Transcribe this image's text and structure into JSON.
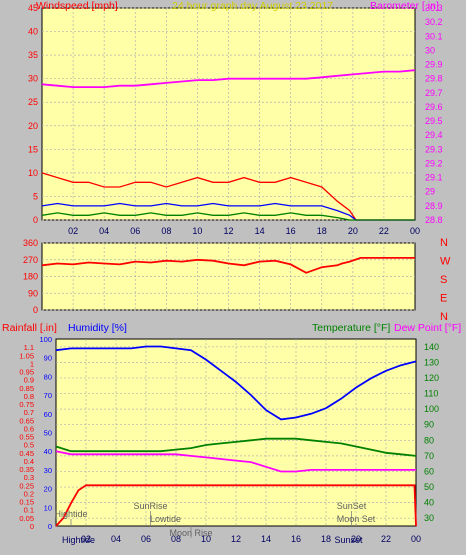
{
  "chart_data": [
    {
      "type": "line",
      "title": "24 hour graph day  August 23 2017",
      "left_axis_title": "Windspeed [mph]",
      "right_axis_title": "Barometer [.in]",
      "ylim_left": [
        0,
        45
      ],
      "yticks_left": [
        "0",
        "5",
        "10",
        "15",
        "20",
        "25",
        "30",
        "35",
        "40",
        "45"
      ],
      "ylim_right": [
        28.8,
        30.3
      ],
      "yticks_right": [
        "28.8",
        "28.9",
        "29",
        "29.1",
        "29.2",
        "29.3",
        "29.4",
        "29.5",
        "29.6",
        "29.7",
        "29.8",
        "29.9",
        "30",
        "30.1",
        "30.2",
        "30.3"
      ],
      "xlim": [
        0,
        24
      ],
      "xticks": [
        "02",
        "04",
        "06",
        "08",
        "10",
        "12",
        "14",
        "16",
        "18",
        "20",
        "22",
        "00"
      ],
      "series": [
        {
          "axis": "right",
          "color": "#ff00ff",
          "x": [
            0,
            1,
            2,
            3,
            4,
            5,
            6,
            7,
            8,
            9,
            10,
            11,
            12,
            13,
            14,
            15,
            16,
            17,
            18,
            19,
            20,
            21,
            22,
            23,
            24
          ],
          "values": [
            29.76,
            29.75,
            29.74,
            29.74,
            29.74,
            29.75,
            29.75,
            29.76,
            29.77,
            29.78,
            29.79,
            29.79,
            29.8,
            29.8,
            29.8,
            29.8,
            29.8,
            29.8,
            29.81,
            29.82,
            29.83,
            29.84,
            29.85,
            29.85,
            29.86
          ]
        },
        {
          "axis": "left",
          "color": "#ff0000",
          "x": [
            0,
            1,
            2,
            3,
            4,
            5,
            6,
            7,
            8,
            9,
            10,
            11,
            12,
            13,
            14,
            15,
            16,
            17,
            18,
            19,
            19.8,
            20.2,
            21,
            22,
            23,
            24
          ],
          "values": [
            10,
            9,
            8,
            8,
            7,
            7,
            8,
            8,
            7,
            8,
            9,
            8,
            8,
            9,
            8,
            8,
            9,
            8,
            7,
            4,
            2,
            0,
            0,
            0,
            0,
            0
          ]
        },
        {
          "axis": "left",
          "color": "#0000ff",
          "x": [
            0,
            1,
            2,
            3,
            4,
            5,
            6,
            7,
            8,
            9,
            10,
            11,
            12,
            13,
            14,
            15,
            16,
            17,
            18,
            19,
            19.8,
            20.2,
            21,
            22,
            23,
            24
          ],
          "values": [
            3,
            3.5,
            3,
            3,
            3,
            3.5,
            3,
            3,
            3.5,
            3,
            3,
            3.5,
            3,
            3,
            3,
            3.5,
            3,
            3,
            3,
            2,
            1,
            0,
            0,
            0,
            0,
            0
          ]
        },
        {
          "axis": "left",
          "color": "#008000",
          "x": [
            0,
            1,
            2,
            3,
            4,
            5,
            6,
            7,
            8,
            9,
            10,
            11,
            12,
            13,
            14,
            15,
            16,
            17,
            18,
            19,
            19.8,
            20.2,
            21,
            22,
            23,
            24
          ],
          "values": [
            1,
            1.5,
            1,
            1,
            1.5,
            1,
            1,
            1.5,
            1,
            1,
            1.5,
            1,
            1,
            1.5,
            1,
            1,
            1.5,
            1,
            1,
            0.5,
            0,
            0,
            0,
            0,
            0,
            0
          ]
        }
      ]
    },
    {
      "type": "line",
      "title": "",
      "ylim": [
        0,
        360
      ],
      "yticks": [
        "0",
        "90",
        "180",
        "270",
        "360"
      ],
      "compass": [
        "N",
        "W",
        "S",
        "E",
        "N"
      ],
      "xlim": [
        0,
        24
      ],
      "series": [
        {
          "color": "#ff0000",
          "x": [
            0,
            1,
            2,
            3,
            4,
            5,
            6,
            7,
            8,
            9,
            10,
            11,
            12,
            13,
            14,
            15,
            16,
            17,
            18,
            19,
            19.3,
            19.8,
            20.5,
            21,
            22,
            23,
            24
          ],
          "values": [
            240,
            250,
            245,
            255,
            250,
            245,
            260,
            255,
            265,
            260,
            270,
            265,
            250,
            240,
            260,
            265,
            245,
            200,
            230,
            240,
            250,
            260,
            280,
            280,
            280,
            280,
            280
          ]
        }
      ]
    },
    {
      "type": "line",
      "left_axis_title_1": "Rainfall [.in]",
      "left_axis_title_2": "Humidity [%]",
      "right_axis_title_1": "Temperature [°F]",
      "right_axis_title_2": "Dew Point [°F]",
      "ylim_rain": [
        0,
        1.15
      ],
      "yticks_rain": [
        "0",
        "0.05",
        "0.1",
        "0.15",
        "0.2",
        "0.25",
        "0.3",
        "0.35",
        "0.4",
        "0.45",
        "0.5",
        "0.55",
        "0.6",
        "0.65",
        "0.7",
        "0.75",
        "0.8",
        "0.85",
        "0.9",
        "0.95",
        "1",
        "1.05",
        "1.1"
      ],
      "ylim_hum": [
        0,
        100
      ],
      "yticks_hum": [
        "0",
        "10",
        "20",
        "30",
        "40",
        "50",
        "60",
        "70",
        "80",
        "90",
        "100"
      ],
      "ylim_temp": [
        25,
        145
      ],
      "yticks_temp": [
        "30",
        "40",
        "50",
        "60",
        "70",
        "80",
        "90",
        "100",
        "110",
        "120",
        "130",
        "140"
      ],
      "xlim": [
        0,
        24
      ],
      "xticks": [
        "02",
        "04",
        "06",
        "08",
        "10",
        "12",
        "14",
        "16",
        "18",
        "20",
        "22",
        "00"
      ],
      "series": [
        {
          "name": "Humidity [%]",
          "axis": "hum",
          "color": "#0000ff",
          "x": [
            0,
            1,
            2,
            3,
            4,
            5,
            6,
            7,
            8,
            9,
            10,
            11,
            12,
            13,
            14,
            15,
            16,
            17,
            18,
            19,
            20,
            21,
            22,
            23,
            24
          ],
          "values": [
            94,
            95,
            95,
            95,
            95,
            95,
            96,
            96,
            95,
            94,
            89,
            83,
            77,
            70,
            62,
            57,
            58,
            60,
            63,
            68,
            74,
            79,
            83,
            86,
            88
          ]
        },
        {
          "name": "Temperature [°F]",
          "axis": "temp",
          "color": "#008000",
          "x": [
            0,
            1,
            2,
            3,
            4,
            5,
            6,
            7,
            8,
            9,
            10,
            11,
            12,
            13,
            14,
            15,
            16,
            17,
            18,
            19,
            20,
            21,
            22,
            23,
            24
          ],
          "values": [
            76,
            73,
            73,
            73,
            73,
            73,
            73,
            73,
            74,
            75,
            77,
            78,
            79,
            80,
            81,
            81,
            81,
            80,
            79,
            78,
            76,
            74,
            72,
            71,
            70
          ]
        },
        {
          "name": "Dew Point [°F]",
          "axis": "temp",
          "color": "#ff00ff",
          "x": [
            0,
            1,
            2,
            3,
            4,
            5,
            6,
            7,
            8,
            9,
            10,
            11,
            12,
            13,
            14,
            15,
            16,
            17,
            18,
            19,
            20,
            21,
            22,
            23,
            24
          ],
          "values": [
            73,
            71,
            71,
            71,
            71,
            71,
            71,
            71,
            71,
            70,
            69,
            68,
            67,
            66,
            63,
            60,
            60,
            61,
            61,
            61,
            61,
            61,
            61,
            61,
            61
          ]
        },
        {
          "name": "Rainfall [.in]",
          "axis": "rain",
          "color": "#ff0000",
          "x": [
            0,
            0.5,
            1,
            1.5,
            2,
            4,
            6,
            8,
            10,
            12,
            14,
            16,
            18,
            20,
            22,
            23.9,
            24
          ],
          "values": [
            0,
            0.05,
            0.14,
            0.22,
            0.25,
            0.25,
            0.25,
            0.25,
            0.25,
            0.25,
            0.25,
            0.25,
            0.25,
            0.25,
            0.25,
            0.25,
            0
          ]
        }
      ],
      "annotations": [
        {
          "label": "Hightide",
          "hour": 1.0,
          "row": "low"
        },
        {
          "label": "SunRise",
          "hour": 6.3,
          "row": "mid"
        },
        {
          "label": "Lowtide",
          "hour": 7.3,
          "row": "low2"
        },
        {
          "label": "Moon Rise",
          "hour": 9.0,
          "row": "low3"
        },
        {
          "label": "SunSet",
          "hour": 19.7,
          "row": "mid"
        },
        {
          "label": "Moon Set",
          "hour": 20.0,
          "row": "low2"
        },
        {
          "label": "Hightide",
          "hour": 1.5,
          "row": "axis"
        },
        {
          "label": "Sunset",
          "hour": 19.5,
          "row": "axis"
        }
      ]
    }
  ]
}
